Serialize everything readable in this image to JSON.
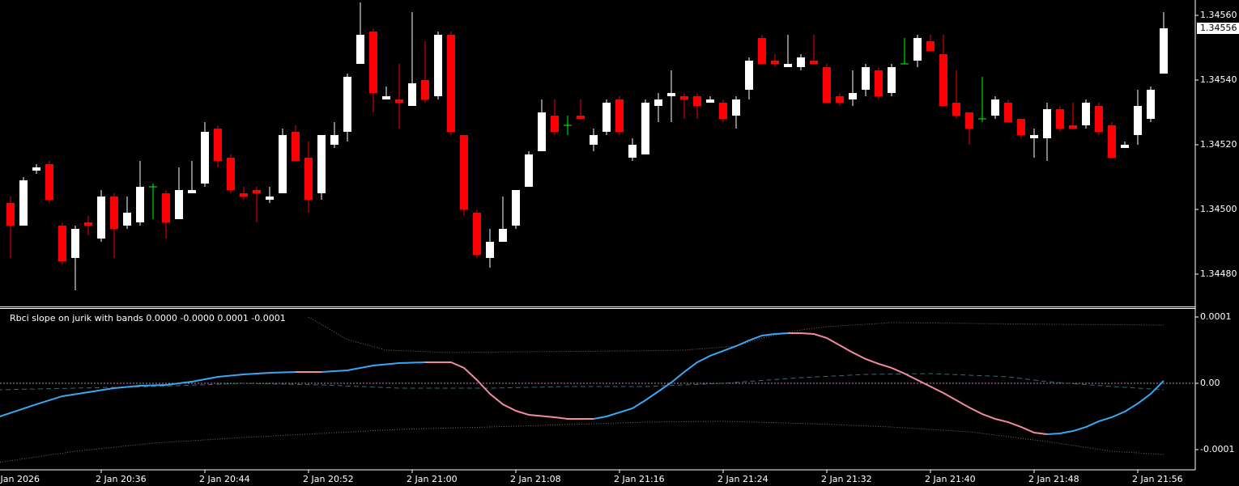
{
  "chart_data": [
    {
      "type": "candlestick",
      "open": [
        1.34502,
        1.34495,
        1.34512,
        1.34514,
        1.34495,
        1.34485,
        1.34496,
        1.34491,
        1.34504,
        1.34495,
        1.34496,
        1.34507,
        1.34505,
        1.34497,
        1.34505,
        1.34508,
        1.34525,
        1.34516,
        1.34505,
        1.34506,
        1.34503,
        1.34505,
        1.34524,
        1.34516,
        1.34505,
        1.3452,
        1.34524,
        1.34545,
        1.34555,
        1.34534,
        1.34534,
        1.34532,
        1.3454,
        1.34535,
        1.34554,
        1.34523,
        1.34499,
        1.34485,
        1.3449,
        1.34495,
        1.34507,
        1.34518,
        1.34529,
        1.34526,
        1.34529,
        1.3452,
        1.34524,
        1.34534,
        1.34516,
        1.34517,
        1.34532,
        1.34535,
        1.34535,
        1.34535,
        1.34533,
        1.34533,
        1.34529,
        1.34537,
        1.34553,
        1.34546,
        1.34544,
        1.34544,
        1.34546,
        1.34544,
        1.34535,
        1.34534,
        1.34537,
        1.34543,
        1.34536,
        1.34545,
        1.34546,
        1.34552,
        1.34548,
        1.34533,
        1.3453,
        1.34528,
        1.34529,
        1.34533,
        1.34528,
        1.34522,
        1.34522,
        1.34531,
        1.34526,
        1.34526,
        1.34532,
        1.34526,
        1.34519,
        1.34523,
        1.34528,
        1.34542
      ],
      "high": [
        1.34504,
        1.3451,
        1.34514,
        1.34515,
        1.34496,
        1.34495,
        1.34498,
        1.34506,
        1.34505,
        1.34504,
        1.34515,
        1.34508,
        1.34506,
        1.34513,
        1.34515,
        1.34527,
        1.34526,
        1.34517,
        1.34507,
        1.34507,
        1.34507,
        1.34525,
        1.34526,
        1.34521,
        1.34523,
        1.34527,
        1.34542,
        1.34564,
        1.34556,
        1.34538,
        1.34545,
        1.34561,
        1.34552,
        1.34555,
        1.34555,
        1.34523,
        1.345,
        1.34494,
        1.34504,
        1.34506,
        1.34518,
        1.34534,
        1.34534,
        1.34529,
        1.34534,
        1.34525,
        1.34534,
        1.34535,
        1.34522,
        1.34534,
        1.34536,
        1.34543,
        1.34536,
        1.34536,
        1.34535,
        1.34534,
        1.34535,
        1.34547,
        1.34554,
        1.34548,
        1.34554,
        1.34548,
        1.34554,
        1.34545,
        1.34536,
        1.34543,
        1.34545,
        1.34544,
        1.34545,
        1.34553,
        1.34554,
        1.34554,
        1.34554,
        1.34543,
        1.3453,
        1.34541,
        1.34535,
        1.34534,
        1.34528,
        1.34525,
        1.34533,
        1.34532,
        1.34533,
        1.34534,
        1.34533,
        1.34527,
        1.34521,
        1.34537,
        1.34538,
        1.34561
      ],
      "low": [
        1.34485,
        1.34495,
        1.34511,
        1.34502,
        1.34483,
        1.34475,
        1.34492,
        1.3449,
        1.34485,
        1.34494,
        1.34495,
        1.34497,
        1.34491,
        1.34497,
        1.34505,
        1.34507,
        1.34513,
        1.34505,
        1.34503,
        1.34496,
        1.34502,
        1.34505,
        1.34515,
        1.34499,
        1.34503,
        1.34519,
        1.34521,
        1.34545,
        1.3453,
        1.34534,
        1.34525,
        1.34532,
        1.34533,
        1.34534,
        1.34523,
        1.34498,
        1.34485,
        1.34482,
        1.3449,
        1.34494,
        1.34507,
        1.34518,
        1.34523,
        1.34523,
        1.34528,
        1.34518,
        1.34523,
        1.34523,
        1.34515,
        1.34517,
        1.34527,
        1.34527,
        1.34528,
        1.34528,
        1.34533,
        1.34527,
        1.34525,
        1.34534,
        1.34545,
        1.34544,
        1.34544,
        1.34543,
        1.34545,
        1.34533,
        1.34532,
        1.34532,
        1.34535,
        1.34534,
        1.34535,
        1.34545,
        1.34544,
        1.34549,
        1.34532,
        1.34528,
        1.3452,
        1.34527,
        1.34528,
        1.34527,
        1.34522,
        1.34516,
        1.34515,
        1.34524,
        1.34525,
        1.34525,
        1.34523,
        1.34516,
        1.34519,
        1.3452,
        1.34527,
        1.34542
      ],
      "close": [
        1.34495,
        1.34509,
        1.34513,
        1.34503,
        1.34484,
        1.34494,
        1.34495,
        1.34504,
        1.34494,
        1.34499,
        1.34507,
        1.34507,
        1.34496,
        1.34506,
        1.34506,
        1.34524,
        1.34515,
        1.34506,
        1.34504,
        1.34505,
        1.34504,
        1.34523,
        1.34515,
        1.34503,
        1.34523,
        1.34523,
        1.34541,
        1.34554,
        1.34536,
        1.34535,
        1.34533,
        1.34539,
        1.34534,
        1.34554,
        1.34524,
        1.345,
        1.34486,
        1.3449,
        1.34494,
        1.34506,
        1.34517,
        1.3453,
        1.34524,
        1.34526,
        1.34528,
        1.34523,
        1.34533,
        1.34524,
        1.3452,
        1.34533,
        1.34534,
        1.34536,
        1.34534,
        1.34532,
        1.34534,
        1.34528,
        1.34534,
        1.34546,
        1.34545,
        1.34545,
        1.34545,
        1.34547,
        1.34545,
        1.34533,
        1.34533,
        1.34536,
        1.34544,
        1.34535,
        1.34544,
        1.34545,
        1.34553,
        1.34549,
        1.34532,
        1.34529,
        1.34525,
        1.34528,
        1.34534,
        1.34527,
        1.34523,
        1.34523,
        1.34531,
        1.34525,
        1.34525,
        1.34533,
        1.34524,
        1.34516,
        1.3452,
        1.34532,
        1.34537,
        1.34556
      ],
      "up_color": "#ffffff",
      "down_color": "#ff0000",
      "doji_color": "#00ff00",
      "ylim": [
        1.3447025,
        1.3456475
      ],
      "yticks": [
        {
          "value": 1.3448,
          "label": "1.34480"
        },
        {
          "value": 1.345,
          "label": "1.34500"
        },
        {
          "value": 1.3452,
          "label": "1.34520"
        },
        {
          "value": 1.3454,
          "label": "1.34540"
        },
        {
          "value": 1.3456,
          "label": "1.34560"
        }
      ],
      "last_price": 1.34556,
      "xticks": [
        {
          "value": -1,
          "label": "2 Jan 2026"
        },
        {
          "value": 7,
          "label": "2 Jan 20:36"
        },
        {
          "value": 15,
          "label": "2 Jan 20:44"
        },
        {
          "value": 23,
          "label": "2 Jan 20:52"
        },
        {
          "value": 31,
          "label": "2 Jan 21:00"
        },
        {
          "value": 39,
          "label": "2 Jan 21:08"
        },
        {
          "value": 47,
          "label": "2 Jan 21:16"
        },
        {
          "value": 55,
          "label": "2 Jan 21:24"
        },
        {
          "value": 63,
          "label": "2 Jan 21:32"
        },
        {
          "value": 71,
          "label": "2 Jan 21:40"
        },
        {
          "value": 79,
          "label": "2 Jan 21:48"
        },
        {
          "value": 87,
          "label": "2 Jan 21:56"
        }
      ]
    },
    {
      "type": "line",
      "title": "Rbci slope on jurik with bands  0.0000 -0.0000 0.0001 -0.0001",
      "ylim": [
        -0.0001293,
        0.0001122
      ],
      "yticks": [
        0.0001,
        {
          "value": 0,
          "label": "0.00"
        },
        -0.0001
      ],
      "level": 0,
      "level_color": "#c080c0",
      "series": [
        {
          "color": "#3aa8f0",
          "down_color": "#f08c9c",
          "style": "solid",
          "x": [
            -1,
            2,
            4,
            6,
            8,
            10,
            12,
            14,
            16,
            18,
            20,
            22,
            24,
            26,
            28,
            30,
            32,
            34,
            35,
            36,
            37,
            38,
            39,
            40,
            42,
            43,
            45,
            46,
            48,
            49,
            50,
            51,
            52,
            53,
            54,
            55,
            56,
            57,
            58,
            59,
            60,
            61,
            62,
            63,
            64,
            65,
            66,
            67,
            68,
            69,
            70,
            71,
            72,
            73,
            74,
            75,
            76,
            77,
            78,
            79,
            80,
            81,
            82,
            83,
            84,
            85,
            86,
            87,
            88,
            89
          ],
          "values": [
            -5.12e-05,
            -3.17e-05,
            -1.95e-05,
            -1.34e-05,
            -7.3e-06,
            -3.7e-06,
            -2.4e-06,
            2.4e-06,
            9.8e-06,
            1.34e-05,
            1.59e-05,
            1.71e-05,
            1.71e-05,
            1.95e-05,
            2.68e-05,
            3.05e-05,
            3.17e-05,
            3.17e-05,
            2.32e-05,
            4.9e-06,
            -1.59e-05,
            -3.17e-05,
            -4.15e-05,
            -4.76e-05,
            -5.12e-05,
            -5.37e-05,
            -5.37e-05,
            -5e-05,
            -3.78e-05,
            -2.56e-05,
            -1.22e-05,
            1.2e-06,
            1.71e-05,
            3.17e-05,
            4.15e-05,
            4.88e-05,
            5.61e-05,
            6.47e-05,
            7.2e-05,
            7.44e-05,
            7.56e-05,
            7.56e-05,
            7.44e-05,
            6.83e-05,
            5.73e-05,
            4.64e-05,
            3.66e-05,
            2.93e-05,
            2.32e-05,
            1.46e-05,
            4.9e-06,
            -4.9e-06,
            -1.46e-05,
            -2.56e-05,
            -3.66e-05,
            -4.64e-05,
            -5.37e-05,
            -5.86e-05,
            -6.59e-05,
            -7.44e-05,
            -7.69e-05,
            -7.56e-05,
            -7.2e-05,
            -6.59e-05,
            -5.73e-05,
            -5.12e-05,
            -4.27e-05,
            -3.05e-05,
            -1.59e-05,
            3.7e-06
          ]
        },
        {
          "color": "#707070",
          "style": "dotted",
          "x": [
            23,
            26,
            29,
            34,
            40,
            48,
            52,
            56,
            58,
            61,
            63,
            68,
            74,
            80,
            89
          ],
          "values": [
            0.0001,
            6.59e-05,
            5e-05,
            4.64e-05,
            4.76e-05,
            4.88e-05,
            5e-05,
            5.61e-05,
            6.83e-05,
            8.05e-05,
            8.54e-05,
            9.15e-05,
            9.03e-05,
            8.91e-05,
            8.78e-05
          ]
        },
        {
          "color": "#707070",
          "style": "dotted",
          "x": [
            -1,
            5,
            11,
            18,
            24,
            30,
            37,
            43,
            49,
            55,
            62,
            68,
            74,
            80,
            85,
            89
          ],
          "values": [
            -0.0001196,
            -0.0001025,
            -9.03e-05,
            -8.17e-05,
            -7.56e-05,
            -6.95e-05,
            -6.59e-05,
            -6.22e-05,
            -5.86e-05,
            -5.73e-05,
            -6.1e-05,
            -6.59e-05,
            -7.32e-05,
            -8.78e-05,
            -0.0001025,
            -0.0001074
          ]
        },
        {
          "color": "#3a6a6a",
          "style": "dashed",
          "x": [
            -1,
            11,
            18,
            24,
            30,
            37,
            43,
            49,
            55,
            61,
            66,
            71,
            77,
            80,
            85,
            89
          ],
          "values": [
            -9.8e-06,
            -4.9e-06,
            0,
            -2.4e-06,
            -7.3e-06,
            -7.3e-06,
            -4.9e-06,
            -4.9e-06,
            0,
            8.5e-06,
            1.34e-05,
            1.46e-05,
            9.8e-06,
            2.4e-06,
            -4.9e-06,
            -9.8e-06
          ]
        }
      ]
    }
  ]
}
